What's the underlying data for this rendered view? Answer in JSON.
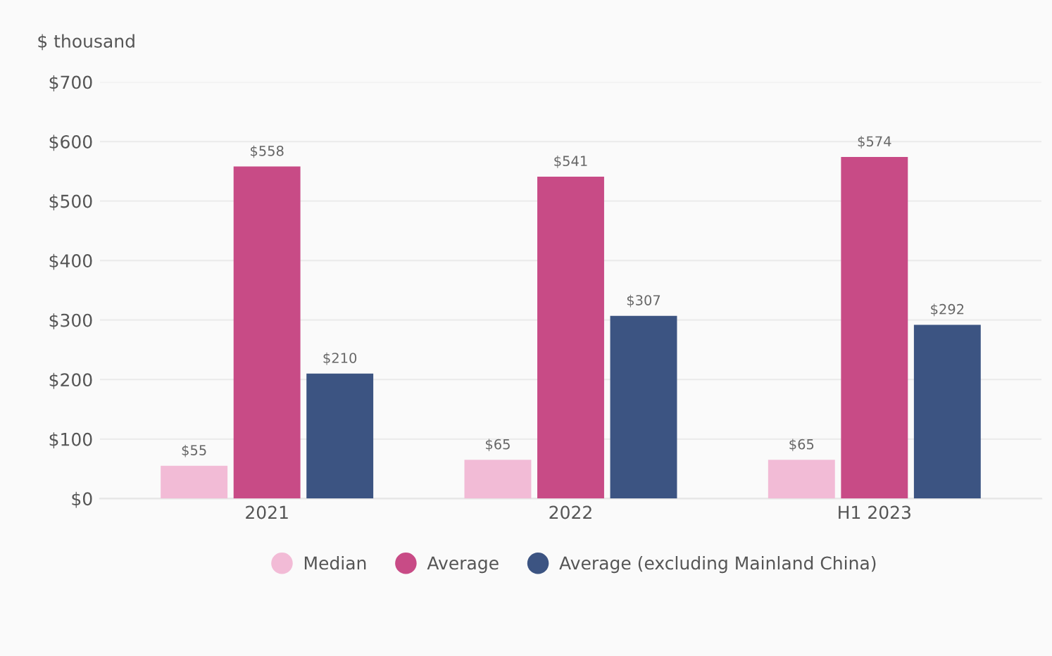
{
  "chart_data": {
    "type": "bar",
    "ylabel": "$ thousand",
    "categories": [
      "2021",
      "2022",
      "H1 2023"
    ],
    "series": [
      {
        "name": "Median",
        "color": "#f2bbd6",
        "values": [
          55,
          65,
          65
        ],
        "value_labels": [
          "$55",
          "$65",
          "$65"
        ]
      },
      {
        "name": "Average",
        "color": "#c84b86",
        "values": [
          558,
          541,
          574
        ],
        "value_labels": [
          "$558",
          "$541",
          "$574"
        ]
      },
      {
        "name": "Average (excluding Mainland China)",
        "color": "#3c5482",
        "values": [
          210,
          307,
          292
        ],
        "value_labels": [
          "$210",
          "$307",
          "$292"
        ]
      }
    ],
    "ylim": [
      0,
      700
    ],
    "yticks": [
      {
        "value": 0,
        "label": "$0"
      },
      {
        "value": 100,
        "label": "$100"
      },
      {
        "value": 200,
        "label": "$200"
      },
      {
        "value": 300,
        "label": "$300"
      },
      {
        "value": 400,
        "label": "$400"
      },
      {
        "value": 500,
        "label": "$500"
      },
      {
        "value": 600,
        "label": "$600"
      },
      {
        "value": 700,
        "label": "$700"
      }
    ],
    "grid": "y",
    "legend": "bottom"
  }
}
